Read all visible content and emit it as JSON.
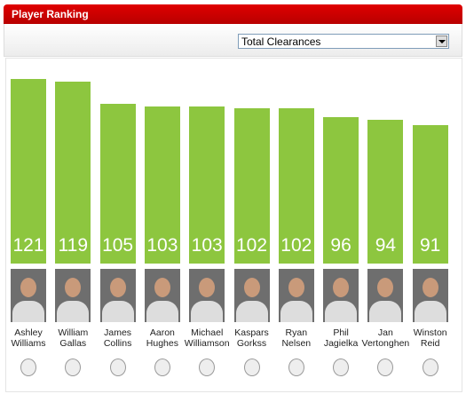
{
  "chart_data": {
    "type": "bar",
    "title": "Player Ranking",
    "metric": "Total Clearances",
    "categories": [
      "Ashley Williams",
      "William Gallas",
      "James Collins",
      "Aaron Hughes",
      "Michael Williamson",
      "Kaspars Gorkss",
      "Ryan Nelsen",
      "Phil Jagielka",
      "Jan Vertonghen",
      "Winston Reid"
    ],
    "values": [
      121,
      119,
      105,
      103,
      103,
      102,
      102,
      96,
      94,
      91
    ],
    "color": "#8dc63f"
  }
}
